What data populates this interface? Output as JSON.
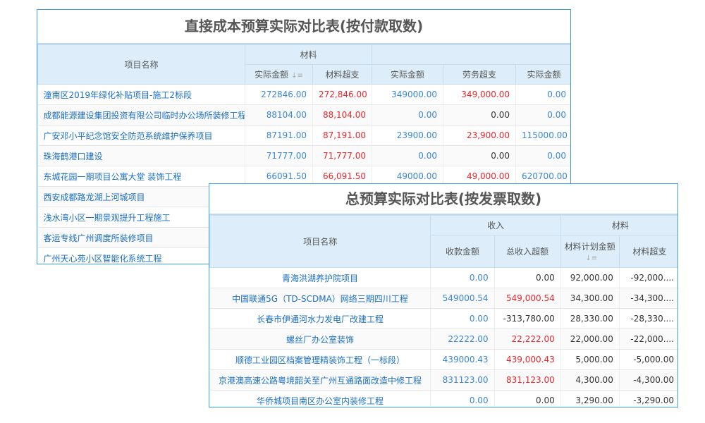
{
  "back": {
    "title": "直接成本预算实际对比表(按付款取数)",
    "headers": {
      "name": "项目名称",
      "group1": "材料",
      "group2": "",
      "c1": "实际金额",
      "c2": "材料超支",
      "c3": "实际金额",
      "c4": "劳务超支",
      "c5": "实际金额"
    },
    "rows": [
      {
        "name": "潼南区2019年绿化补贴项目-施工2标段",
        "c1": "272846.00",
        "c2": "272,846.00",
        "c3": "349000.00",
        "c4": "349,000.00",
        "c5": "0.00"
      },
      {
        "name": "成都能源建设集团投资有限公司临时办公场所装修工程",
        "c1": "88104.00",
        "c2": "88,104.00",
        "c3": "0.00",
        "c4": "0.00",
        "c5": "0.00"
      },
      {
        "name": "广安邓小平纪念馆安全防范系统维护保养项目",
        "c1": "87191.00",
        "c2": "87,191.00",
        "c3": "23900.00",
        "c4": "23,900.00",
        "c5": "115000.00"
      },
      {
        "name": "珠海鹤港口建设",
        "c1": "71777.00",
        "c2": "71,777.00",
        "c3": "0.00",
        "c4": "0.00",
        "c5": "0.00"
      },
      {
        "name": "东城花园一期项目公寓大堂 装饰工程",
        "c1": "66091.50",
        "c2": "66,091.50",
        "c3": "49000.00",
        "c4": "49,000.00",
        "c5": "620700.00"
      },
      {
        "name": "西安成都路龙湖上河城项目"
      },
      {
        "name": "浅水湾小区一期景观提升工程施工"
      },
      {
        "name": "客运专线广州调度所装修项目"
      },
      {
        "name": "广州天心苑小区智能化系统工程"
      }
    ]
  },
  "front": {
    "title": "总预算实际对比表(按发票取数)",
    "headers": {
      "name": "项目名称",
      "group1": "收入",
      "group2": "材料",
      "c1": "收款金额",
      "c2": "总收入超额",
      "c3": "材料计划金额",
      "c4": "材料超支"
    },
    "rows": [
      {
        "name": "青海洪湖养护院项目",
        "c1": "0.00",
        "c2": "0.00",
        "c3": "92,000.00",
        "c4": "-92,000...."
      },
      {
        "name": "中国联通5G（TD-SCDMA）网络三期四川工程",
        "c1": "549000.54",
        "c2": "549,000.54",
        "c3": "34,300.00",
        "c4": "-34,300...."
      },
      {
        "name": "长春市伊通河水力发电厂改建工程",
        "c1": "0.00",
        "c2": "-313,780.00",
        "c3": "28,330.00",
        "c4": "-28,330...."
      },
      {
        "name": "螺丝厂办公室装饰",
        "c1": "22222.00",
        "c2": "22,222.00",
        "c3": "22,000.00",
        "c4": "-22,000...."
      },
      {
        "name": "顺德工业园区档案管理精装饰工程（一标段）",
        "c1": "439000.43",
        "c2": "439,000.43",
        "c3": "5,000.00",
        "c4": "-5,000.00"
      },
      {
        "name": "京港澳高速公路粤境韶关至广州互通路面改造中修工程",
        "c1": "831123.00",
        "c2": "831,123.00",
        "c3": "4,300.00",
        "c4": "-4,300.00"
      },
      {
        "name": "华侨城项目南区办公室内装修工程",
        "c1": "0.00",
        "c2": "0.00",
        "c3": "3,290.00",
        "c4": "-3,290.00"
      }
    ]
  },
  "icons": {
    "sort": "sort-descending-icon"
  },
  "colors": {
    "link": "#1a6fc4",
    "over": "#e8262b",
    "header_bg": "#ddeefa",
    "border": "#3da0e0"
  }
}
